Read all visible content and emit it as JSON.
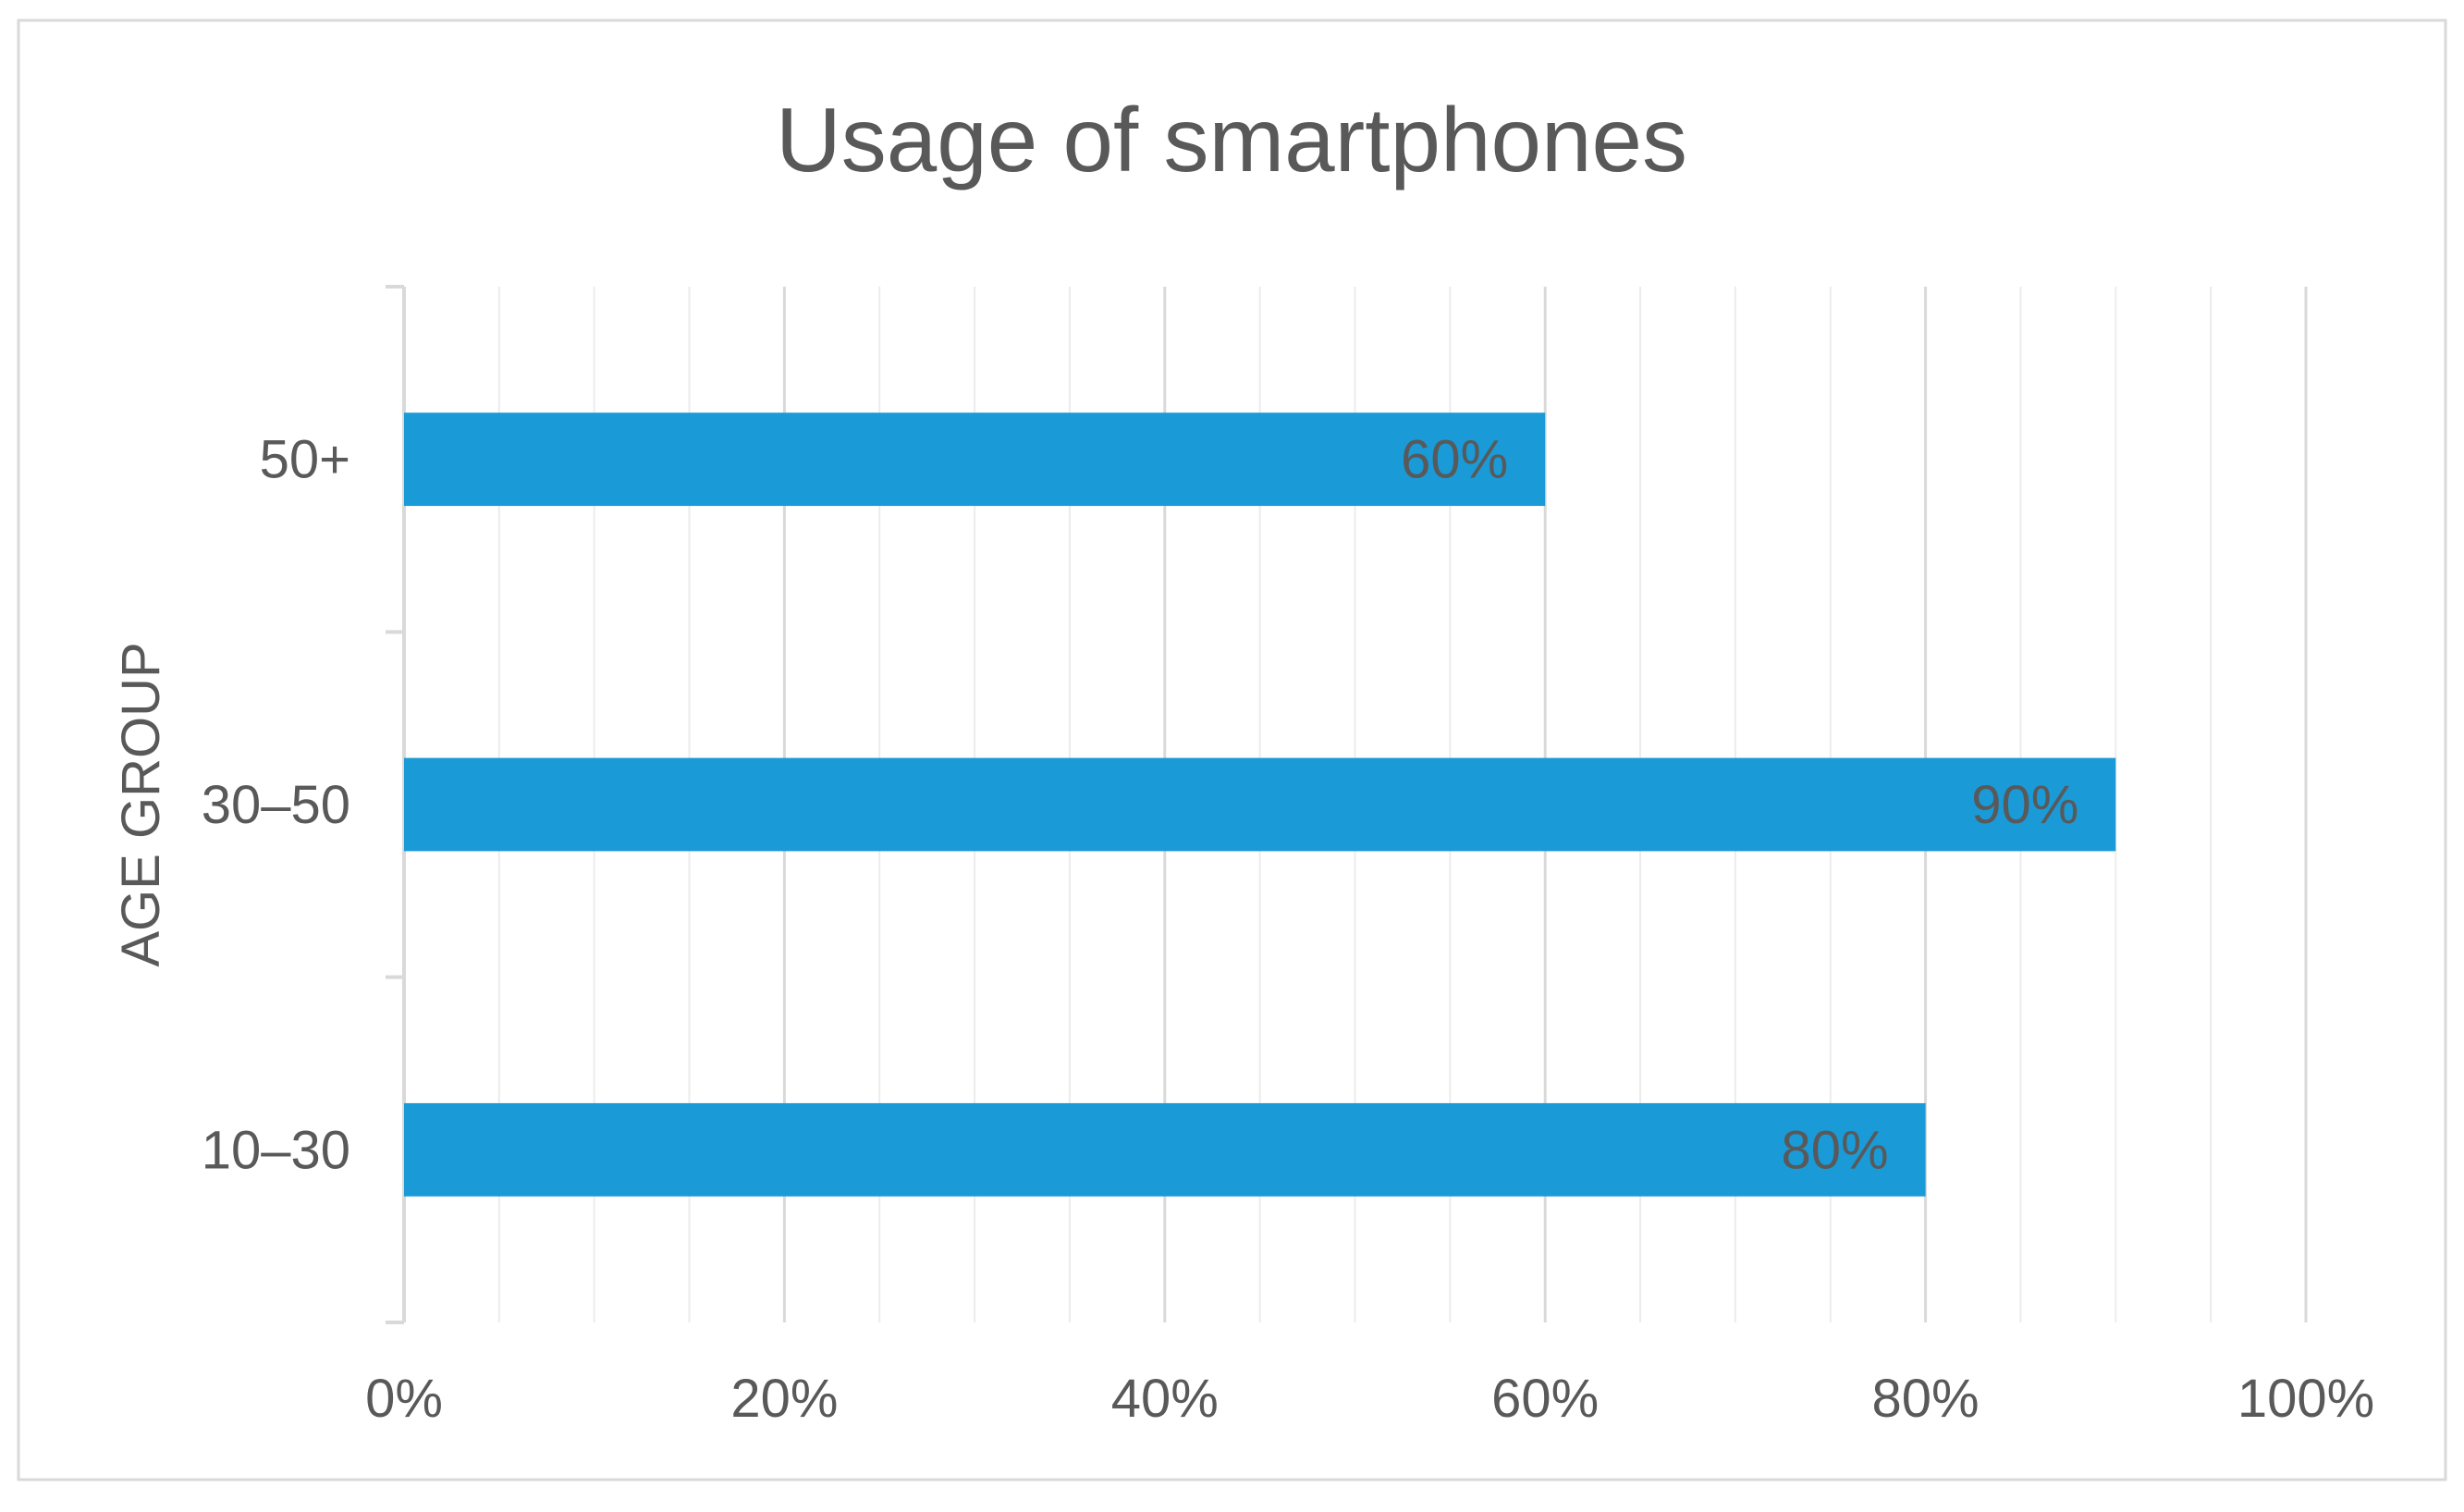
{
  "chart_data": {
    "type": "bar",
    "orientation": "horizontal",
    "title": "Usage of smartphones",
    "xlabel": "",
    "ylabel": "AGE GROUP",
    "categories": [
      "50+",
      "30–50",
      "10–30"
    ],
    "values": [
      60,
      90,
      80
    ],
    "data_labels": [
      "60%",
      "90%",
      "80%"
    ],
    "xlim": [
      0,
      100
    ],
    "x_ticks": [
      0,
      20,
      40,
      60,
      80,
      100
    ],
    "x_tick_labels": [
      "0%",
      "20%",
      "40%",
      "60%",
      "80%",
      "100%"
    ],
    "minor_x_ticks_step": 4,
    "grid": true,
    "legend": "none",
    "colors": {
      "bar": "#1a9ad6",
      "text": "#595959",
      "major_grid": "#d9d9d9",
      "minor_grid": "#ececec",
      "axis": "#d9d9d9",
      "border": "#d9d9d9"
    }
  }
}
